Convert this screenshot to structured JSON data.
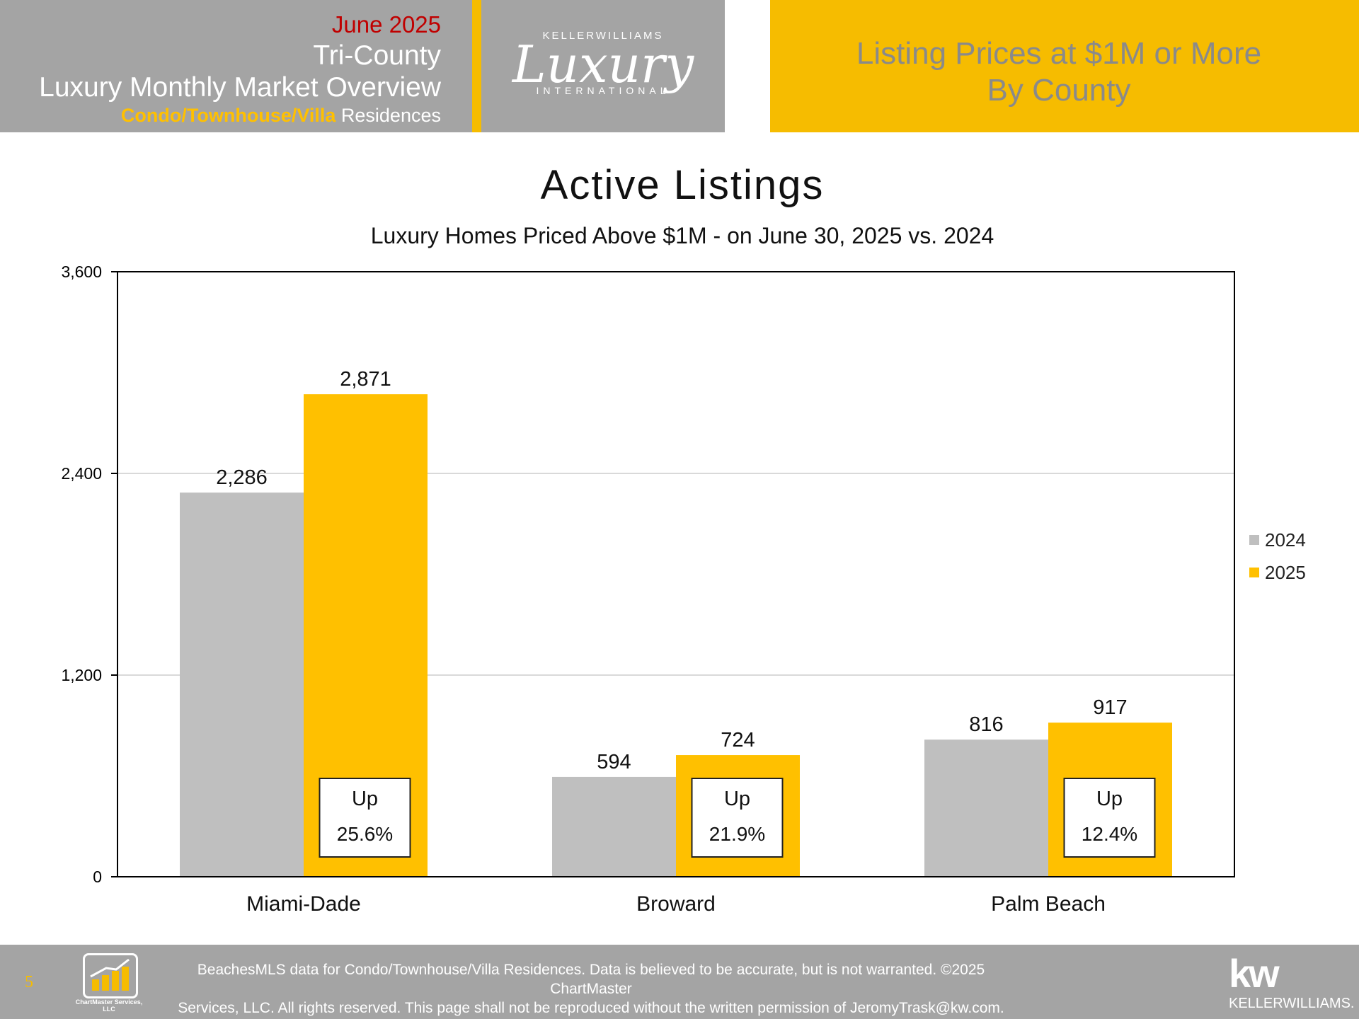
{
  "header": {
    "date": "June 2025",
    "region": "Tri-County",
    "report": "Luxury Monthly Market Overview",
    "subtype_accent": "Condo/Townhouse/Villa",
    "subtype_rest": " Residences",
    "logo_top": "KELLERWILLIAMS",
    "logo_script": "Luxury",
    "logo_bottom": "INTERNATIONAL",
    "right_line1": "Listing Prices at $1M or More",
    "right_line2": "By County"
  },
  "chart_data": {
    "type": "bar",
    "title": "Active Listings",
    "subtitle": "Luxury Homes Priced Above $1M - on June 30,  2025 vs. 2024",
    "categories": [
      "Miami-Dade",
      "Broward",
      "Palm Beach"
    ],
    "series": [
      {
        "name": "2024",
        "values": [
          2286,
          594,
          816
        ],
        "labels": [
          "2,286",
          "594",
          "816"
        ],
        "color": "#bfbfbf"
      },
      {
        "name": "2025",
        "values": [
          2871,
          724,
          917
        ],
        "labels": [
          "2,871",
          "724",
          "917"
        ],
        "color": "#ffc000"
      }
    ],
    "ylim": [
      0,
      3600
    ],
    "yticks": [
      0,
      1200,
      2400,
      3600
    ],
    "ytick_labels": [
      "0",
      "1,200",
      "2,400",
      "3,600"
    ],
    "grid": true,
    "legend": "right",
    "annotations": [
      {
        "line1": "Up",
        "line2": "25.6%"
      },
      {
        "line1": "Up",
        "line2": "21.9%"
      },
      {
        "line1": "Up",
        "line2": "12.4%"
      }
    ]
  },
  "footer": {
    "page": "5",
    "chartmaster_logo": "ChartMaster Services, LLC",
    "line1": "BeachesMLS data for Condo/Townhouse/Villa Residences.  Data is believed to be accurate, but is not warranted.   ©2025  ChartMaster",
    "line2": "Services, LLC.  All rights reserved. This page shall not be reproduced without the written permission of JeromyTrask@kw.com.",
    "kw_mark": "kw",
    "kw_text": "KELLERWILLIAMS."
  }
}
